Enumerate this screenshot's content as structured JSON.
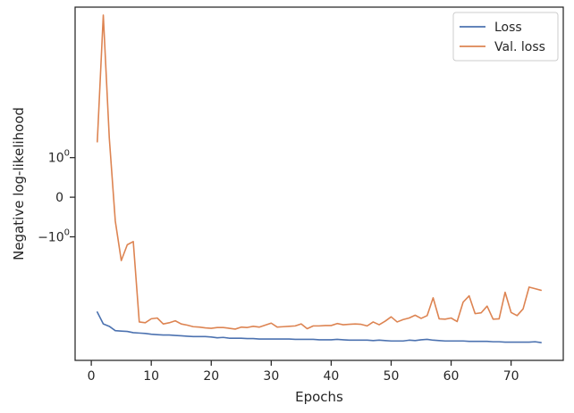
{
  "chart_data": {
    "type": "line",
    "xlabel": "Epochs",
    "ylabel": "Negative log-likelihood",
    "yscale": "symlog",
    "xlim": [
      -2.7,
      78.7
    ],
    "ylim": [
      -4.12,
      4.8
    ],
    "x_ticks": [
      0,
      10,
      20,
      30,
      40,
      50,
      60,
      70
    ],
    "x_tick_labels": [
      "0",
      "10",
      "20",
      "30",
      "40",
      "50",
      "60",
      "70"
    ],
    "y_ticks": [
      {
        "value": 1,
        "label": "10",
        "exponent": "0"
      },
      {
        "value": 0,
        "label": "0",
        "exponent": ""
      },
      {
        "value": -1,
        "label": "−10",
        "exponent": "0"
      }
    ],
    "grid": false,
    "legend": {
      "position": "top-right"
    },
    "series": [
      {
        "name": "Loss",
        "color": "#4c72b0",
        "x": [
          1,
          2,
          3,
          4,
          5,
          6,
          7,
          8,
          9,
          10,
          11,
          12,
          13,
          14,
          15,
          16,
          17,
          18,
          19,
          20,
          21,
          22,
          23,
          24,
          25,
          26,
          27,
          28,
          29,
          30,
          31,
          32,
          33,
          34,
          35,
          36,
          37,
          38,
          39,
          40,
          41,
          42,
          43,
          44,
          45,
          46,
          47,
          48,
          49,
          50,
          51,
          52,
          53,
          54,
          55,
          56,
          57,
          58,
          59,
          60,
          61,
          62,
          63,
          64,
          65,
          66,
          67,
          68,
          69,
          70,
          71,
          72,
          73,
          74,
          75
        ],
        "values": [
          -2.9,
          -3.2,
          -3.26,
          -3.37,
          -3.38,
          -3.39,
          -3.42,
          -3.43,
          -3.44,
          -3.46,
          -3.47,
          -3.48,
          -3.48,
          -3.49,
          -3.5,
          -3.51,
          -3.52,
          -3.52,
          -3.52,
          -3.53,
          -3.55,
          -3.54,
          -3.56,
          -3.56,
          -3.56,
          -3.57,
          -3.57,
          -3.58,
          -3.58,
          -3.58,
          -3.58,
          -3.58,
          -3.58,
          -3.59,
          -3.59,
          -3.59,
          -3.59,
          -3.6,
          -3.6,
          -3.6,
          -3.59,
          -3.6,
          -3.61,
          -3.61,
          -3.61,
          -3.61,
          -3.62,
          -3.61,
          -3.62,
          -3.63,
          -3.63,
          -3.63,
          -3.61,
          -3.62,
          -3.6,
          -3.59,
          -3.61,
          -3.62,
          -3.63,
          -3.63,
          -3.63,
          -3.63,
          -3.64,
          -3.64,
          -3.64,
          -3.64,
          -3.65,
          -3.65,
          -3.66,
          -3.66,
          -3.66,
          -3.66,
          -3.66,
          -3.65,
          -3.67
        ]
      },
      {
        "name": "Val. loss",
        "color": "#dd8452",
        "x": [
          1,
          2,
          3,
          4,
          5,
          6,
          7,
          8,
          9,
          10,
          11,
          12,
          13,
          14,
          15,
          16,
          17,
          18,
          19,
          20,
          21,
          22,
          23,
          24,
          25,
          26,
          27,
          28,
          29,
          30,
          31,
          32,
          33,
          34,
          35,
          36,
          37,
          38,
          39,
          40,
          41,
          42,
          43,
          44,
          45,
          46,
          47,
          48,
          49,
          50,
          51,
          52,
          53,
          54,
          55,
          56,
          57,
          58,
          59,
          60,
          61,
          62,
          63,
          64,
          65,
          66,
          67,
          68,
          69,
          70,
          71,
          72,
          73,
          74,
          75
        ],
        "values": [
          1.4,
          4.6,
          1.5,
          -0.6,
          -1.6,
          -1.2,
          -1.12,
          -3.15,
          -3.17,
          -3.07,
          -3.05,
          -3.2,
          -3.17,
          -3.12,
          -3.2,
          -3.23,
          -3.27,
          -3.28,
          -3.3,
          -3.31,
          -3.29,
          -3.29,
          -3.31,
          -3.33,
          -3.28,
          -3.29,
          -3.26,
          -3.28,
          -3.23,
          -3.18,
          -3.28,
          -3.27,
          -3.26,
          -3.25,
          -3.2,
          -3.32,
          -3.25,
          -3.25,
          -3.24,
          -3.24,
          -3.19,
          -3.22,
          -3.21,
          -3.2,
          -3.21,
          -3.25,
          -3.15,
          -3.22,
          -3.13,
          -3.02,
          -3.15,
          -3.09,
          -3.05,
          -2.98,
          -3.06,
          -2.99,
          -2.54,
          -3.07,
          -3.08,
          -3.05,
          -3.14,
          -2.65,
          -2.49,
          -2.94,
          -2.92,
          -2.75,
          -3.08,
          -3.07,
          -2.4,
          -2.91,
          -2.99,
          -2.82,
          -2.27,
          -2.31,
          -2.35
        ]
      }
    ]
  }
}
